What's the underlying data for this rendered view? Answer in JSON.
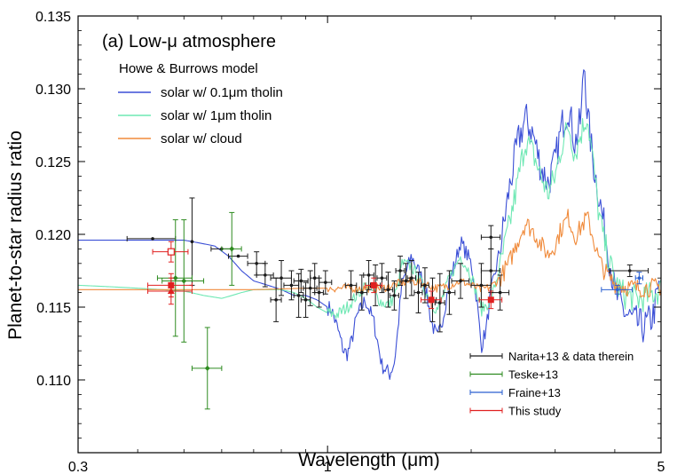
{
  "chart_data": {
    "type": "line",
    "title": "(a) Low-μ atmosphere",
    "model_label": "Howe & Burrows model",
    "xlabel": "Wavelength (μm)",
    "ylabel": "Planet-to-star radius ratio",
    "xscale": "log",
    "xlim": [
      0.3,
      5
    ],
    "ylim": [
      0.105,
      0.135
    ],
    "x_ticks": [
      {
        "value": 0.3,
        "label": "0.3"
      },
      {
        "value": 1,
        "label": "1"
      },
      {
        "value": 5,
        "label": "5"
      }
    ],
    "y_ticks": [
      {
        "value": 0.11,
        "label": "0.110"
      },
      {
        "value": 0.115,
        "label": "0.115"
      },
      {
        "value": 0.12,
        "label": "0.120"
      },
      {
        "value": 0.125,
        "label": "0.125"
      },
      {
        "value": 0.13,
        "label": "0.130"
      },
      {
        "value": 0.135,
        "label": "0.135"
      }
    ],
    "colors": {
      "tholin01": "#3b4fd6",
      "tholin1": "#6fe8b4",
      "cloud": "#f08a3a",
      "narita": "#1a1a1a",
      "teske": "#2e8b20",
      "fraine": "#2a5fd0",
      "this_study": "#e02020",
      "axis": "#000000"
    },
    "model_legend": [
      {
        "key": "tholin01",
        "label": "solar w/ 0.1μm tholin"
      },
      {
        "key": "tholin1",
        "label": "solar w/ 1μm tholin"
      },
      {
        "key": "cloud",
        "label": "solar w/ cloud"
      }
    ],
    "data_legend": [
      {
        "key": "narita",
        "label": "Narita+13 & data therein"
      },
      {
        "key": "teske",
        "label": "Teske+13"
      },
      {
        "key": "fraine",
        "label": "Fraine+13"
      },
      {
        "key": "this_study",
        "label": "This study"
      }
    ],
    "models": {
      "tholin01": {
        "x": [
          0.3,
          0.5,
          0.58,
          0.62,
          0.66,
          0.7,
          0.75,
          0.8,
          0.85,
          0.9,
          0.95,
          1.0,
          1.02,
          1.05,
          1.08,
          1.1,
          1.12,
          1.15,
          1.2,
          1.25,
          1.3,
          1.35,
          1.38,
          1.4,
          1.43,
          1.5,
          1.55,
          1.6,
          1.65,
          1.7,
          1.75,
          1.8,
          1.85,
          1.9,
          2.0,
          2.05,
          2.1,
          2.15,
          2.2,
          2.3,
          2.4,
          2.5,
          2.6,
          2.7,
          2.8,
          2.9,
          3.0,
          3.1,
          3.2,
          3.3,
          3.4,
          3.45,
          3.5,
          3.6,
          3.7,
          3.8,
          3.9,
          4.0,
          4.2,
          4.4,
          4.6,
          4.8,
          5.0
        ],
        "y": [
          0.1196,
          0.1196,
          0.1192,
          0.1185,
          0.1175,
          0.1168,
          0.1165,
          0.1162,
          0.1158,
          0.1158,
          0.1155,
          0.115,
          0.1148,
          0.1135,
          0.112,
          0.1118,
          0.1125,
          0.1143,
          0.1155,
          0.114,
          0.111,
          0.1104,
          0.1112,
          0.113,
          0.1165,
          0.1185,
          0.1175,
          0.1165,
          0.114,
          0.1128,
          0.1145,
          0.1168,
          0.118,
          0.1195,
          0.118,
          0.1158,
          0.1123,
          0.1135,
          0.116,
          0.119,
          0.123,
          0.1262,
          0.128,
          0.1268,
          0.1246,
          0.1235,
          0.125,
          0.1275,
          0.1288,
          0.1262,
          0.128,
          0.1322,
          0.1285,
          0.125,
          0.1228,
          0.1205,
          0.1183,
          0.116,
          0.1146,
          0.114,
          0.1136,
          0.1143,
          0.117
        ]
      },
      "tholin1": {
        "x": [
          0.3,
          0.4,
          0.5,
          0.55,
          0.6,
          0.66,
          0.7,
          0.75,
          0.8,
          0.85,
          0.9,
          0.95,
          1.0,
          1.05,
          1.1,
          1.15,
          1.2,
          1.25,
          1.3,
          1.35,
          1.4,
          1.43,
          1.5,
          1.55,
          1.6,
          1.65,
          1.7,
          1.75,
          1.8,
          1.9,
          2.0,
          2.1,
          2.2,
          2.3,
          2.4,
          2.5,
          2.6,
          2.7,
          2.8,
          2.9,
          3.0,
          3.1,
          3.2,
          3.3,
          3.4,
          3.5,
          3.6,
          3.7,
          3.8,
          4.0,
          4.2,
          4.5,
          5.0
        ],
        "y": [
          0.1165,
          0.1163,
          0.1161,
          0.1158,
          0.1156,
          0.116,
          0.1162,
          0.1162,
          0.1162,
          0.116,
          0.1156,
          0.115,
          0.1146,
          0.1145,
          0.115,
          0.1158,
          0.1165,
          0.116,
          0.1153,
          0.1152,
          0.1162,
          0.118,
          0.1178,
          0.117,
          0.1162,
          0.1153,
          0.1148,
          0.1158,
          0.117,
          0.1185,
          0.1172,
          0.1148,
          0.1155,
          0.1178,
          0.1205,
          0.1235,
          0.1265,
          0.1255,
          0.124,
          0.1228,
          0.124,
          0.1262,
          0.1275,
          0.1255,
          0.127,
          0.1282,
          0.125,
          0.1215,
          0.1195,
          0.1167,
          0.1158,
          0.1155,
          0.1162
        ]
      },
      "cloud": {
        "x": [
          0.3,
          0.5,
          0.7,
          0.9,
          1.1,
          1.3,
          1.4,
          1.5,
          1.6,
          1.7,
          1.8,
          1.9,
          2.0,
          2.1,
          2.2,
          2.3,
          2.4,
          2.5,
          2.6,
          2.7,
          2.8,
          2.9,
          3.0,
          3.1,
          3.2,
          3.3,
          3.4,
          3.5,
          3.6,
          3.7,
          3.8,
          4.0,
          4.2,
          4.5,
          5.0
        ],
        "y": [
          0.1162,
          0.1162,
          0.1162,
          0.1163,
          0.1163,
          0.1163,
          0.1166,
          0.1168,
          0.1166,
          0.1163,
          0.1165,
          0.1168,
          0.1165,
          0.1162,
          0.1164,
          0.117,
          0.118,
          0.1195,
          0.1208,
          0.1202,
          0.1193,
          0.1186,
          0.1193,
          0.1205,
          0.1212,
          0.1198,
          0.1205,
          0.1212,
          0.1198,
          0.1183,
          0.1175,
          0.1166,
          0.1164,
          0.1163,
          0.1164
        ]
      }
    },
    "data_series": {
      "narita": [
        [
          0.43,
          0.1197,
          0.05,
          0.0
        ],
        [
          0.52,
          0.1195,
          0.0,
          0.003
        ],
        [
          0.6,
          0.119,
          0.03,
          0.0
        ],
        [
          0.65,
          0.1185,
          0.03,
          0.0
        ],
        [
          0.71,
          0.118,
          0.03,
          0.0008
        ],
        [
          0.74,
          0.1172,
          0.03,
          0.0008
        ],
        [
          0.8,
          0.117,
          0.04,
          0.0012
        ],
        [
          0.84,
          0.1165,
          0.03,
          0.001
        ],
        [
          0.88,
          0.1168,
          0.03,
          0.0008
        ],
        [
          0.92,
          0.1163,
          0.03,
          0.0012
        ],
        [
          0.96,
          0.116,
          0.02,
          0.001
        ],
        [
          0.99,
          0.1167,
          0.03,
          0.0008
        ],
        [
          0.78,
          0.1155,
          0.02,
          0.0015
        ],
        [
          0.87,
          0.1158,
          0.02,
          0.0015
        ],
        [
          0.9,
          0.1155,
          0.02,
          0.0012
        ],
        [
          0.94,
          0.117,
          0.02,
          0.001
        ],
        [
          1.12,
          0.1165,
          0.03,
          0.001
        ],
        [
          1.18,
          0.116,
          0.03,
          0.0012
        ],
        [
          1.22,
          0.1172,
          0.03,
          0.001
        ],
        [
          1.26,
          0.1165,
          0.03,
          0.0014
        ],
        [
          1.3,
          0.117,
          0.03,
          0.001
        ],
        [
          1.34,
          0.1162,
          0.03,
          0.0012
        ],
        [
          1.38,
          0.1158,
          0.03,
          0.001
        ],
        [
          1.42,
          0.1175,
          0.03,
          0.001
        ],
        [
          1.46,
          0.1168,
          0.03,
          0.0012
        ],
        [
          1.5,
          0.117,
          0.03,
          0.0012
        ],
        [
          1.55,
          0.116,
          0.03,
          0.0014
        ],
        [
          1.6,
          0.1165,
          0.03,
          0.0012
        ],
        [
          1.66,
          0.1155,
          0.03,
          0.0015
        ],
        [
          1.72,
          0.1153,
          0.04,
          0.002
        ],
        [
          1.8,
          0.116,
          0.05,
          0.0015
        ],
        [
          1.9,
          0.1168,
          0.08,
          0.0012
        ],
        [
          2.1,
          0.1165,
          0.1,
          0.0015
        ],
        [
          2.2,
          0.1175,
          0.1,
          0.0015
        ],
        [
          2.3,
          0.116,
          0.1,
          0.0012
        ],
        [
          2.2,
          0.1198,
          0.1,
          0.0008
        ],
        [
          4.3,
          0.1175,
          0.4,
          0.0004
        ]
      ],
      "teske": [
        [
          0.5,
          0.1168,
          0.05,
          0.0042
        ],
        [
          0.48,
          0.117,
          0.04,
          0.004
        ],
        [
          0.56,
          0.1108,
          0.04,
          0.0028
        ],
        [
          0.63,
          0.119,
          0.03,
          0.0025
        ]
      ],
      "fraine": [
        [
          4.05,
          0.1162,
          0.3,
          0.0003
        ],
        [
          4.5,
          0.117,
          0.08,
          0.0004
        ]
      ],
      "this_study": [
        [
          0.47,
          0.1188,
          0.04,
          0.0007
        ],
        [
          0.47,
          0.1165,
          0.05,
          0.0008
        ],
        [
          0.47,
          0.1161,
          0.05,
          0.0009
        ],
        [
          1.25,
          0.1165,
          0.05,
          0.0005
        ],
        [
          1.65,
          0.1155,
          0.08,
          0.0006
        ],
        [
          2.2,
          0.1155,
          0.12,
          0.0006
        ]
      ]
    }
  }
}
